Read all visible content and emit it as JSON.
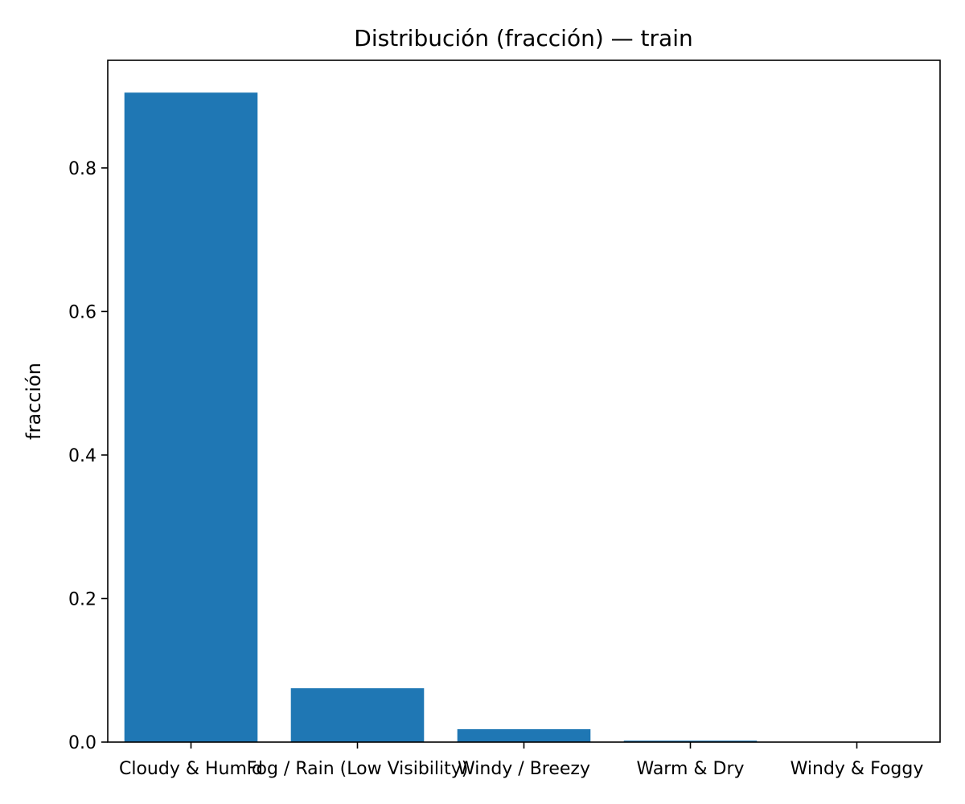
{
  "chart_data": {
    "type": "bar",
    "title": "Distribución (fracción) — train",
    "xlabel": "",
    "ylabel": "fracción",
    "categories": [
      "Cloudy & Humid",
      "Fog / Rain (Low Visibility)",
      "Windy / Breezy",
      "Warm & Dry",
      "Windy & Foggy"
    ],
    "values": [
      0.905,
      0.075,
      0.018,
      0.002,
      0.0005
    ],
    "ylim": [
      0,
      0.95
    ],
    "yticks": [
      0.0,
      0.2,
      0.4,
      0.6,
      0.8
    ],
    "ytick_labels": [
      "0.0",
      "0.2",
      "0.4",
      "0.6",
      "0.8"
    ],
    "bar_color": "#1f77b4",
    "grid": false,
    "legend": "none"
  }
}
